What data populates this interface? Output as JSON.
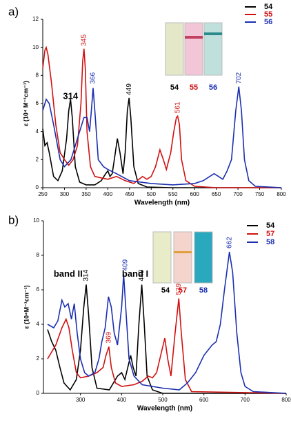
{
  "chart_data": [
    {
      "type": "line",
      "panel_label": "a)",
      "xlabel": "Wavelength (nm)",
      "ylabel": "ε (10⁴ M⁻¹cm⁻¹)",
      "xlim": [
        250,
        800
      ],
      "xticks": [
        250,
        300,
        350,
        400,
        450,
        500,
        550,
        600,
        650,
        700,
        750,
        800
      ],
      "ylim": [
        0,
        12
      ],
      "yticks": [
        0,
        2,
        4,
        6,
        8,
        10,
        12
      ],
      "legend": "upper right",
      "series": [
        {
          "name": "54",
          "color": "#000000",
          "x": [
            250,
            255,
            260,
            265,
            275,
            285,
            295,
            305,
            310,
            314,
            318,
            325,
            335,
            350,
            370,
            385,
            395,
            400,
            405,
            410,
            415,
            422,
            428,
            435,
            440,
            445,
            449,
            453,
            460,
            470,
            490,
            550,
            800
          ],
          "values": [
            4.2,
            3.0,
            3.2,
            2.5,
            0.8,
            0.5,
            1.2,
            3.5,
            5.5,
            6.3,
            5.0,
            1.5,
            0.4,
            0.2,
            0.2,
            0.5,
            1.0,
            1.2,
            0.8,
            1.0,
            2.0,
            3.5,
            2.5,
            1.0,
            2.5,
            5.5,
            6.4,
            5.0,
            1.5,
            0.3,
            0.05,
            0,
            0
          ]
        },
        {
          "name": "55",
          "color": "#d01010",
          "x": [
            250,
            255,
            258,
            262,
            270,
            280,
            290,
            300,
            310,
            320,
            330,
            338,
            342,
            345,
            348,
            352,
            360,
            370,
            385,
            400,
            420,
            440,
            460,
            480,
            490,
            500,
            510,
            520,
            528,
            535,
            545,
            552,
            558,
            561,
            565,
            570,
            580,
            600,
            650,
            800
          ],
          "values": [
            8.5,
            9.8,
            10.0,
            9.5,
            7.5,
            4.5,
            2.5,
            2.0,
            1.6,
            2.0,
            3.0,
            6.0,
            9.0,
            9.9,
            8.5,
            4.0,
            1.5,
            0.8,
            0.7,
            0.6,
            0.8,
            0.5,
            0.3,
            0.8,
            0.6,
            0.8,
            1.5,
            2.7,
            2.0,
            1.3,
            2.5,
            4.0,
            5.0,
            5.1,
            4.5,
            2.0,
            0.5,
            0.1,
            0,
            0
          ]
        },
        {
          "name": "56",
          "color": "#1a2fb0",
          "x": [
            250,
            258,
            265,
            275,
            290,
            300,
            315,
            330,
            345,
            352,
            358,
            362,
            366,
            370,
            378,
            390,
            400,
            420,
            450,
            500,
            550,
            600,
            620,
            635,
            645,
            655,
            665,
            675,
            685,
            695,
            702,
            708,
            715,
            725,
            740,
            800
          ],
          "values": [
            5.5,
            6.3,
            6.0,
            4.5,
            2.0,
            1.5,
            2.0,
            3.5,
            5.0,
            5.0,
            4.0,
            5.5,
            7.1,
            5.5,
            2.0,
            1.5,
            1.3,
            1.0,
            0.5,
            0.3,
            0.2,
            0.3,
            0.5,
            0.8,
            1.0,
            0.8,
            0.6,
            1.2,
            2.0,
            5.5,
            7.2,
            5.5,
            2.0,
            0.5,
            0.1,
            0
          ]
        }
      ],
      "annotations": [
        {
          "text": "314",
          "color": "#000000"
        },
        {
          "text": "345",
          "color": "#d01010"
        },
        {
          "text": "366",
          "color": "#1a2fb0"
        },
        {
          "text": "449",
          "color": "#000000"
        },
        {
          "text": "561",
          "color": "#d01010"
        },
        {
          "text": "702",
          "color": "#1a2fb0"
        }
      ],
      "inset_labels": [
        {
          "text": "54",
          "color": "#000000"
        },
        {
          "text": "55",
          "color": "#d01010"
        },
        {
          "text": "56",
          "color": "#1a2fb0"
        }
      ]
    },
    {
      "type": "line",
      "panel_label": "b)",
      "xlabel": "Wavelength (nm)",
      "ylabel": "ε (10⁴M⁻¹cm⁻¹)",
      "xlim": [
        210,
        800
      ],
      "xticks": [
        300,
        400,
        500,
        600,
        700,
        800
      ],
      "ylim": [
        0,
        10
      ],
      "yticks": [
        0,
        2,
        4,
        6,
        8,
        10
      ],
      "legend": "upper right",
      "series": [
        {
          "name": "54",
          "color": "#000000",
          "x": [
            220,
            230,
            240,
            250,
            260,
            275,
            290,
            300,
            308,
            314,
            320,
            328,
            340,
            370,
            390,
            400,
            408,
            415,
            422,
            428,
            435,
            442,
            449,
            455,
            462,
            475,
            500,
            800
          ],
          "values": [
            3.7,
            3.0,
            2.5,
            1.5,
            0.6,
            0.2,
            0.8,
            2.5,
            5.0,
            6.3,
            4.5,
            1.5,
            0.3,
            0.2,
            1.0,
            1.2,
            0.8,
            1.5,
            2.2,
            1.5,
            1.0,
            4.0,
            6.3,
            4.0,
            1.0,
            0.2,
            0,
            0
          ]
        },
        {
          "name": "57",
          "color": "#d01010",
          "x": [
            220,
            240,
            255,
            265,
            272,
            280,
            290,
            300,
            320,
            340,
            355,
            362,
            369,
            375,
            385,
            400,
            430,
            450,
            465,
            475,
            485,
            495,
            505,
            512,
            520,
            530,
            539,
            545,
            555,
            570,
            800
          ],
          "values": [
            2.0,
            2.8,
            3.8,
            4.3,
            3.8,
            2.5,
            1.2,
            0.9,
            1.0,
            1.2,
            1.5,
            2.2,
            2.7,
            1.5,
            0.6,
            0.4,
            0.5,
            0.7,
            1.0,
            0.9,
            1.2,
            2.2,
            3.2,
            2.0,
            1.0,
            3.5,
            5.5,
            3.5,
            0.8,
            0.1,
            0
          ]
        },
        {
          "name": "58",
          "color": "#1a2fb0",
          "x": [
            220,
            235,
            245,
            255,
            262,
            270,
            278,
            285,
            292,
            300,
            310,
            320,
            335,
            345,
            352,
            360,
            368,
            375,
            382,
            390,
            400,
            405,
            410,
            418,
            430,
            450,
            500,
            540,
            560,
            580,
            600,
            620,
            630,
            640,
            650,
            662,
            670,
            680,
            690,
            700,
            720,
            800
          ],
          "values": [
            4.0,
            3.8,
            4.2,
            5.4,
            5.0,
            5.2,
            4.3,
            5.2,
            3.5,
            2.0,
            1.2,
            1.0,
            1.2,
            2.0,
            3.0,
            3.8,
            5.6,
            5.0,
            3.5,
            2.8,
            5.0,
            6.9,
            5.0,
            2.0,
            1.0,
            0.5,
            0.3,
            0.2,
            0.6,
            1.2,
            2.2,
            2.8,
            3.0,
            4.0,
            6.0,
            8.2,
            7.0,
            3.5,
            1.2,
            0.4,
            0.1,
            0
          ]
        }
      ],
      "annotations": [
        {
          "text": "band II",
          "color": "#000000"
        },
        {
          "text": "314",
          "color": "#000000"
        },
        {
          "text": "369",
          "color": "#d01010"
        },
        {
          "text": "409",
          "color": "#1a2fb0"
        },
        {
          "text": "band I",
          "color": "#000000"
        },
        {
          "text": "449",
          "color": "#000000"
        },
        {
          "text": "539",
          "color": "#d01010"
        },
        {
          "text": "662",
          "color": "#1a2fb0"
        }
      ],
      "inset_labels": [
        {
          "text": "54",
          "color": "#000000"
        },
        {
          "text": "57",
          "color": "#d01010"
        },
        {
          "text": "58",
          "color": "#1a2fb0"
        }
      ]
    }
  ]
}
